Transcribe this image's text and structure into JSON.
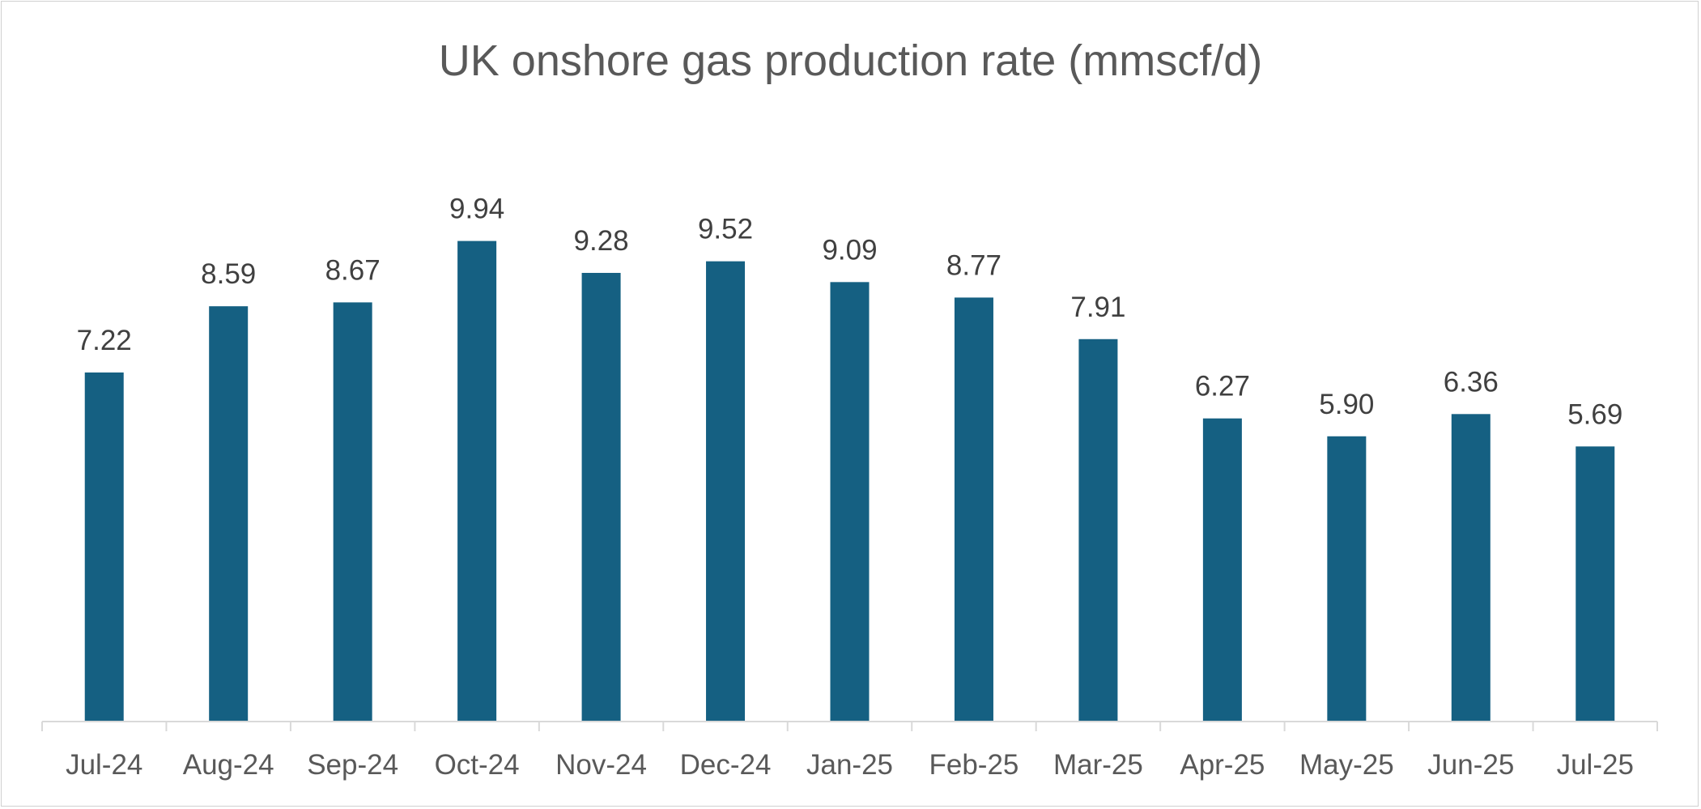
{
  "chart_data": {
    "type": "bar",
    "title": "UK onshore gas production rate (mmscf/d)",
    "xlabel": "",
    "ylabel": "",
    "categories": [
      "Jul-24",
      "Aug-24",
      "Sep-24",
      "Oct-24",
      "Nov-24",
      "Dec-24",
      "Jan-25",
      "Feb-25",
      "Mar-25",
      "Apr-25",
      "May-25",
      "Jun-25",
      "Jul-25"
    ],
    "values": [
      7.22,
      8.59,
      8.67,
      9.94,
      9.28,
      9.52,
      9.09,
      8.77,
      7.91,
      6.27,
      5.9,
      6.36,
      5.69
    ],
    "data_labels": [
      "7.22",
      "8.59",
      "8.67",
      "9.94",
      "9.28",
      "9.52",
      "9.09",
      "8.77",
      "7.91",
      "6.27",
      "5.90",
      "6.36",
      "5.69"
    ],
    "ylim": [
      0,
      12
    ],
    "grid": false,
    "legend": "none",
    "bar_color": "#156082"
  }
}
